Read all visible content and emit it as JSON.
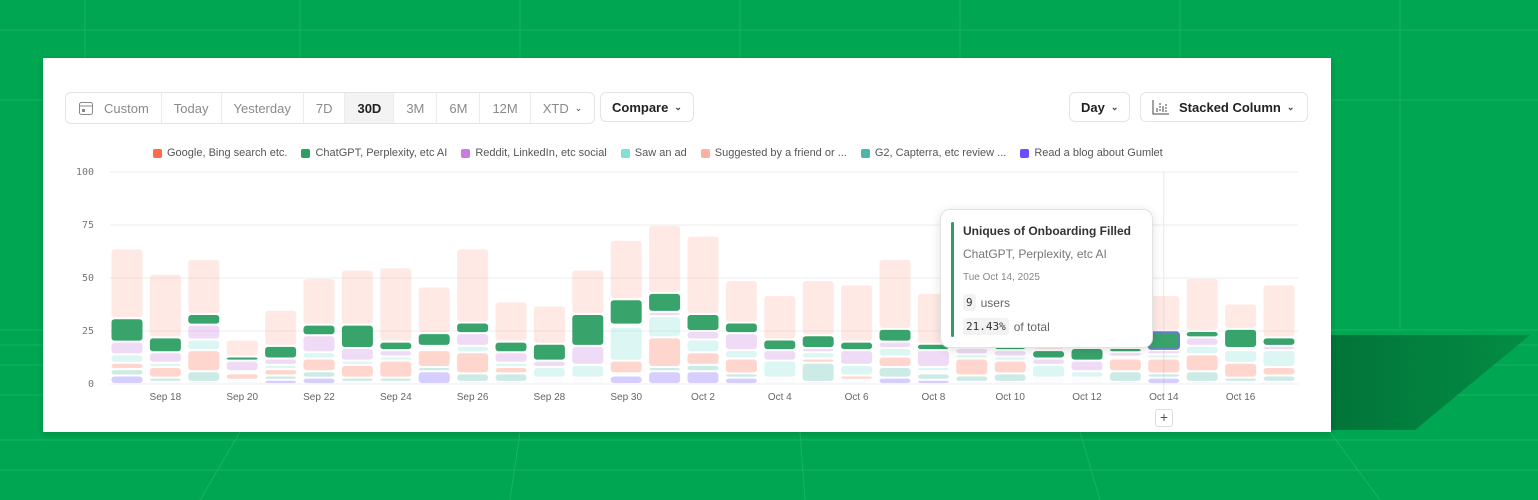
{
  "toolbar": {
    "range_buttons": [
      "Custom",
      "Today",
      "Yesterday",
      "7D",
      "30D",
      "3M",
      "6M",
      "12M",
      "XTD"
    ],
    "active_range": "30D",
    "compare_label": "Compare",
    "interval_label": "Day",
    "chart_type_label": "Stacked Column",
    "icons": {
      "calendar": "calendar-icon",
      "chart": "bar-chart-icon",
      "chevron": "chevron-down-icon"
    }
  },
  "tooltip": {
    "title": "Uniques of Onboarding Filled",
    "series": "ChatGPT, Perplexity, etc AI",
    "date": "Tue Oct 14, 2025",
    "value": "9",
    "value_unit": "users",
    "percent": "21.43%",
    "percent_label": "of total"
  },
  "add_button": "+",
  "chart_data": {
    "type": "bar",
    "stacked": true,
    "ylim": [
      0,
      100
    ],
    "yticks": [
      "0",
      "25",
      "50",
      "75",
      "100"
    ],
    "grid": true,
    "legend_position": "top",
    "highlight_series": "ChatGPT, Perplexity, etc AI",
    "highlight_category": "Oct 14",
    "categories": [
      "Sep 17",
      "Sep 18",
      "Sep 19",
      "Sep 20",
      "Sep 21",
      "Sep 22",
      "Sep 23",
      "Sep 24",
      "Sep 25",
      "Sep 26",
      "Sep 27",
      "Sep 28",
      "Sep 29",
      "Sep 30",
      "Oct 1",
      "Oct 2",
      "Oct 3",
      "Oct 4",
      "Oct 5",
      "Oct 6",
      "Oct 7",
      "Oct 8",
      "Oct 9",
      "Oct 10",
      "Oct 11",
      "Oct 12",
      "Oct 13",
      "Oct 14",
      "Oct 15",
      "Oct 16",
      "Oct 17"
    ],
    "xtick_labels": [
      "Sep 18",
      "Sep 20",
      "Sep 22",
      "Sep 24",
      "Sep 26",
      "Sep 28",
      "Sep 30",
      "Oct 2",
      "Oct 4",
      "Oct 6",
      "Oct 8",
      "Oct 10",
      "Oct 12",
      "Oct 14",
      "Oct 16"
    ],
    "series": [
      {
        "name": "Google, Bing search etc.",
        "color": "#ff6a4a",
        "values": [
          3,
          5,
          10,
          3,
          3,
          6,
          6,
          8,
          8,
          10,
          3,
          1,
          1,
          6,
          14,
          6,
          7,
          1,
          2,
          2,
          5,
          1,
          8,
          6,
          1,
          1,
          6,
          7,
          8,
          7,
          4
        ]
      },
      {
        "name": "ChatGPT, Perplexity, etc AI",
        "color": "#2e9e64",
        "values": [
          11,
          7,
          5,
          2,
          6,
          5,
          11,
          4,
          6,
          5,
          5,
          8,
          15,
          12,
          9,
          8,
          5,
          5,
          6,
          4,
          6,
          3,
          3,
          4,
          4,
          6,
          2,
          9,
          3,
          9,
          4
        ]
      },
      {
        "name": "Reddit, LinkedIn, etc social",
        "color": "#c77dde",
        "values": [
          6,
          5,
          7,
          5,
          3,
          8,
          6,
          3,
          1,
          6,
          5,
          3,
          9,
          1,
          2,
          4,
          8,
          5,
          2,
          7,
          3,
          8,
          3,
          3,
          3,
          5,
          2,
          2,
          4,
          1,
          2
        ]
      },
      {
        "name": "Saw an ad",
        "color": "#7fe0d5",
        "values": [
          4,
          2,
          5,
          1,
          2,
          3,
          2,
          2,
          1,
          3,
          2,
          5,
          6,
          16,
          10,
          6,
          4,
          8,
          3,
          5,
          4,
          2,
          2,
          2,
          6,
          3,
          1,
          2,
          4,
          6,
          8
        ]
      },
      {
        "name": "Suggested by a friend or ...",
        "color": "#ffb1a1",
        "values": [
          33,
          30,
          26,
          8,
          17,
          22,
          26,
          35,
          22,
          35,
          19,
          18,
          21,
          28,
          32,
          37,
          20,
          21,
          26,
          27,
          33,
          24,
          25,
          30,
          24,
          31,
          25,
          17,
          25,
          12,
          25
        ]
      },
      {
        "name": "G2, Capterra, etc review ...",
        "color": "#4db6a6",
        "values": [
          3,
          2,
          5,
          1,
          2,
          3,
          2,
          2,
          2,
          4,
          4,
          1,
          1,
          1,
          2,
          3,
          2,
          1,
          9,
          1,
          5,
          3,
          3,
          4,
          1,
          1,
          5,
          2,
          5,
          2,
          3
        ]
      },
      {
        "name": "Read a blog about Gumlet",
        "color": "#6b4eff",
        "values": [
          4,
          1,
          1,
          1,
          2,
          3,
          1,
          1,
          6,
          1,
          1,
          1,
          1,
          4,
          6,
          6,
          3,
          1,
          1,
          1,
          3,
          2,
          1,
          1,
          1,
          1,
          1,
          3,
          1,
          1,
          1
        ]
      }
    ],
    "stack_order": [
      "Read a blog about Gumlet",
      "G2, Capterra, etc review ...",
      "Google, Bing search etc.",
      "Saw an ad",
      "Reddit, LinkedIn, etc social",
      "ChatGPT, Perplexity, etc AI",
      "Suggested by a friend or ..."
    ]
  }
}
